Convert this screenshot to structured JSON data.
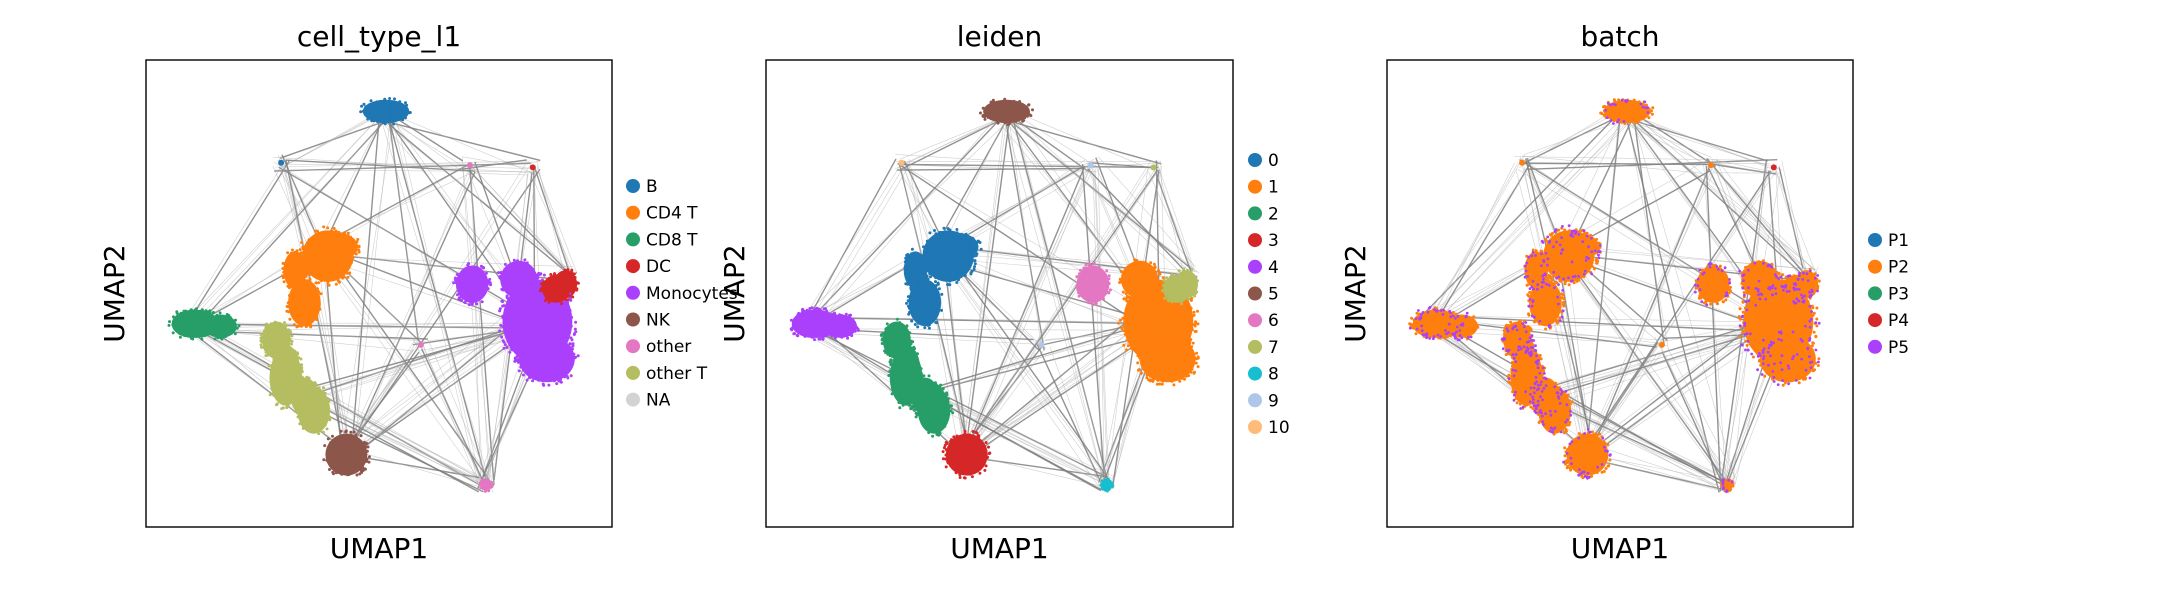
{
  "chart_data": [
    {
      "type": "scatter",
      "title": "cell_type_l1",
      "xlabel": "UMAP1",
      "ylabel": "UMAP2",
      "grid": false,
      "legend_placement": "right",
      "legend": [
        {
          "label": "B",
          "color": "#1f77b4"
        },
        {
          "label": "CD4 T",
          "color": "#ff7f0e"
        },
        {
          "label": "CD8 T",
          "color": "#279e68"
        },
        {
          "label": "DC",
          "color": "#d62728"
        },
        {
          "label": "Monocytes",
          "color": "#aa40fc"
        },
        {
          "label": "NK",
          "color": "#8c564b"
        },
        {
          "label": "other",
          "color": "#e377c2"
        },
        {
          "label": "other T",
          "color": "#b5bd61"
        },
        {
          "label": "NA",
          "color": "#d3d3d3"
        }
      ]
    },
    {
      "type": "scatter",
      "title": "leiden",
      "xlabel": "UMAP1",
      "ylabel": "UMAP2",
      "grid": false,
      "legend_placement": "right",
      "legend": [
        {
          "label": "0",
          "color": "#1f77b4"
        },
        {
          "label": "1",
          "color": "#ff7f0e"
        },
        {
          "label": "2",
          "color": "#279e68"
        },
        {
          "label": "3",
          "color": "#d62728"
        },
        {
          "label": "4",
          "color": "#aa40fc"
        },
        {
          "label": "5",
          "color": "#8c564b"
        },
        {
          "label": "6",
          "color": "#e377c2"
        },
        {
          "label": "7",
          "color": "#b5bd61"
        },
        {
          "label": "8",
          "color": "#17becf"
        },
        {
          "label": "9",
          "color": "#aec7e8"
        },
        {
          "label": "10",
          "color": "#ffbb78"
        }
      ]
    },
    {
      "type": "scatter",
      "title": "batch",
      "xlabel": "UMAP1",
      "ylabel": "UMAP2",
      "grid": false,
      "legend_placement": "right",
      "legend": [
        {
          "label": "P1",
          "color": "#1f77b4"
        },
        {
          "label": "P2",
          "color": "#ff7f0e"
        },
        {
          "label": "P3",
          "color": "#279e68"
        },
        {
          "label": "P4",
          "color": "#d62728"
        },
        {
          "label": "P5",
          "color": "#aa40fc"
        }
      ]
    }
  ]
}
